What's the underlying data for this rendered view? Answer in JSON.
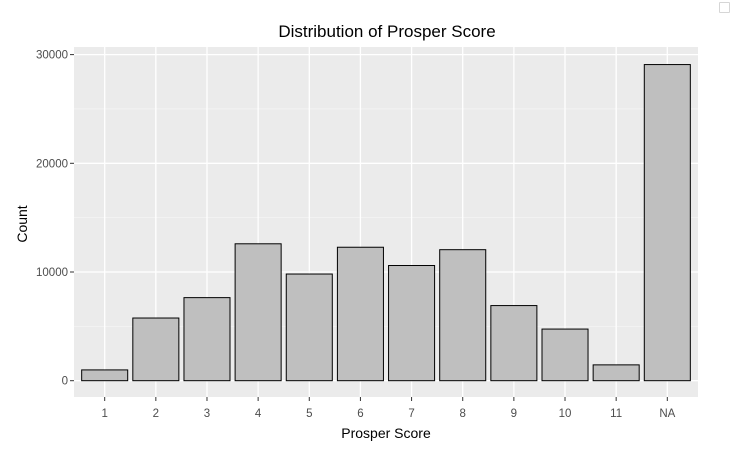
{
  "chart_data": {
    "type": "bar",
    "title": "Distribution of Prosper Score",
    "xlabel": "Prosper Score",
    "ylabel": "Count",
    "categories": [
      "1",
      "2",
      "3",
      "4",
      "5",
      "6",
      "7",
      "8",
      "9",
      "10",
      "11",
      "NA"
    ],
    "values": [
      992,
      5766,
      7642,
      12595,
      9813,
      12278,
      10597,
      12053,
      6911,
      4750,
      1456,
      29084
    ],
    "ylim": [
      -1500,
      30700
    ],
    "yticks": [
      0,
      10000,
      20000,
      30000
    ],
    "ytick_labels": [
      "0",
      "10000",
      "20000",
      "30000"
    ],
    "grid": true,
    "legend": "none",
    "colors": {
      "panel_background": "#ebebeb",
      "grid_major": "#ffffff",
      "grid_minor": "#f5f5f5",
      "bar_fill": "#bfbfbf",
      "bar_outline": "#000000"
    }
  },
  "window": {
    "corner_icon": "resize-icon"
  }
}
